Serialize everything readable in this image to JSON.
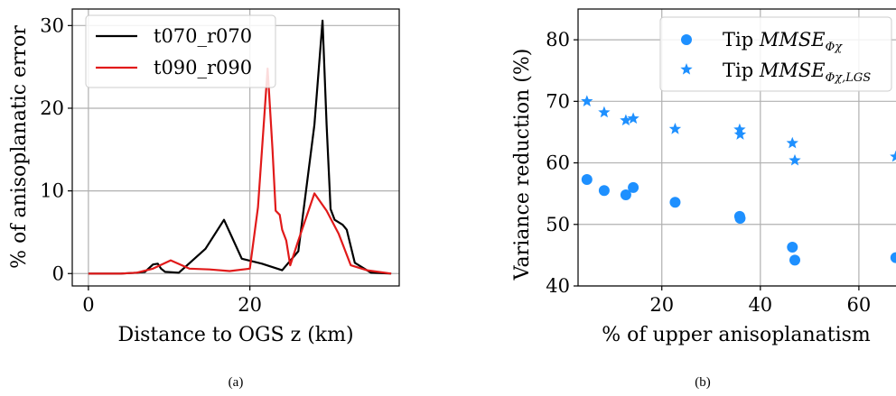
{
  "chart_data": [
    {
      "type": "line",
      "caption": "(a)",
      "xlabel": "Distance to OGS z (km)",
      "ylabel": "% of anisoplanatic error",
      "xlim": [
        -2,
        38.5
      ],
      "ylim": [
        -1.5,
        32
      ],
      "xticks": [
        0,
        20
      ],
      "yticks": [
        0,
        10,
        20,
        30
      ],
      "grid": true,
      "legend_position": "upper-left",
      "series": [
        {
          "name": "t070_r070",
          "color": "#000000",
          "x": [
            0,
            4,
            6,
            7,
            8,
            8.6,
            9,
            9.5,
            11.2,
            12,
            14.5,
            16.8,
            19,
            21.5,
            24,
            26,
            28,
            29,
            29.5,
            30,
            30.5,
            31.5,
            32,
            33,
            35,
            37.5
          ],
          "y": [
            0,
            0,
            0.1,
            0.2,
            1.1,
            1.2,
            0.6,
            0.2,
            0.1,
            0.8,
            3.0,
            6.5,
            1.8,
            1.2,
            0.4,
            2.7,
            18.0,
            30.6,
            18.0,
            7.8,
            6.5,
            5.9,
            5.3,
            1.3,
            0.1,
            0.0
          ]
        },
        {
          "name": "t090_r090",
          "color": "#e11a1a",
          "x": [
            0,
            4,
            6,
            8,
            10.2,
            12.5,
            15,
            17.5,
            20,
            21,
            22.2,
            22.8,
            23.2,
            23.7,
            24,
            24.5,
            25,
            26,
            28,
            29.5,
            31,
            32.5,
            34.5,
            37.5
          ],
          "y": [
            0,
            0,
            0.1,
            0.6,
            1.6,
            0.6,
            0.5,
            0.3,
            0.6,
            8.0,
            24.8,
            15.0,
            7.6,
            7.1,
            5.3,
            4.0,
            1.0,
            4.0,
            9.7,
            7.6,
            4.8,
            1.0,
            0.4,
            0.0
          ]
        }
      ]
    },
    {
      "type": "scatter",
      "caption": "(b)",
      "xlabel": "% of upper anisoplanatism",
      "ylabel": "Variance reduction (%)",
      "xlim": [
        3,
        69
      ],
      "ylim": [
        40,
        85
      ],
      "xticks": [
        20,
        40,
        60
      ],
      "yticks": [
        40,
        50,
        60,
        70,
        80
      ],
      "grid": true,
      "legend_position": "top-right",
      "series": [
        {
          "name": "Tip MMSE_Φχ",
          "legend_prefix": "Tip ",
          "legend_math": "MMSE",
          "legend_sub": "Φχ",
          "marker": "circle",
          "color": "#1e90ff",
          "x": [
            4.8,
            8.3,
            12.7,
            14.2,
            22.7,
            35.8,
            35.9,
            46.5,
            47.0,
            67.5
          ],
          "y": [
            57.3,
            55.5,
            54.8,
            56.0,
            53.6,
            51.3,
            51.0,
            46.3,
            44.2,
            44.6
          ]
        },
        {
          "name": "Tip MMSE_Φχ,LGS",
          "legend_prefix": "Tip ",
          "legend_math": "MMSE",
          "legend_sub": "Φχ,LGS",
          "marker": "star",
          "color": "#1e90ff",
          "x": [
            4.8,
            8.3,
            12.7,
            14.2,
            22.7,
            35.8,
            35.9,
            46.5,
            47.0,
            67.5
          ],
          "y": [
            70.0,
            68.2,
            66.9,
            67.2,
            65.5,
            65.4,
            64.6,
            63.2,
            60.4,
            61.0
          ]
        }
      ]
    }
  ]
}
